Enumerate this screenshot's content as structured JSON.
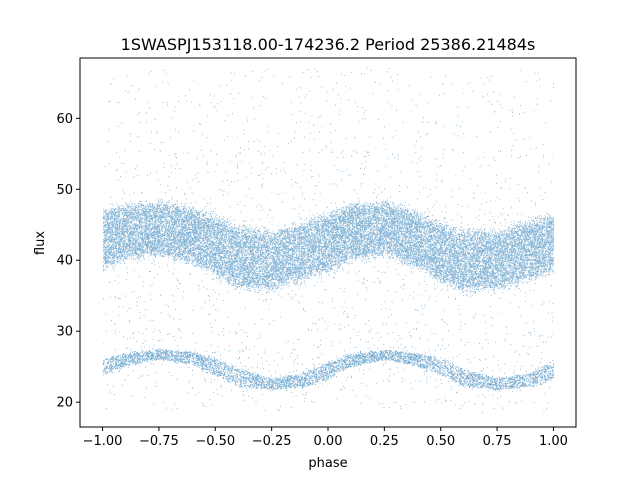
{
  "chart_data": {
    "type": "scatter",
    "title": "1SWASPJ153118.00-174236.2 Period 25386.21484s",
    "xlabel": "phase",
    "ylabel": "flux",
    "xlim": [
      -1.1,
      1.1
    ],
    "ylim": [
      16.5,
      68.5
    ],
    "xticks": [
      -1.0,
      -0.75,
      -0.5,
      -0.25,
      0.0,
      0.25,
      0.5,
      0.75,
      1.0
    ],
    "xtick_labels": [
      "−1.00",
      "−0.75",
      "−0.50",
      "−0.25",
      "0.00",
      "0.25",
      "0.50",
      "0.75",
      "1.00"
    ],
    "yticks": [
      20,
      30,
      40,
      50,
      60
    ],
    "ytick_labels": [
      "20",
      "30",
      "40",
      "50",
      "60"
    ],
    "grid": false,
    "color": "#1f77b4",
    "series": [
      {
        "band": "upper",
        "phase": [
          -1.0,
          -0.9,
          -0.75,
          -0.6,
          -0.5,
          -0.4,
          -0.25,
          -0.1,
          0.0,
          0.1,
          0.25,
          0.4,
          0.5,
          0.6,
          0.75,
          0.9,
          1.0
        ],
        "center_flux": [
          43.0,
          44.0,
          44.5,
          43.5,
          42.0,
          40.5,
          40.0,
          41.5,
          42.5,
          44.0,
          44.5,
          43.0,
          41.0,
          40.0,
          40.0,
          41.5,
          42.5
        ],
        "half_width": [
          4.0,
          3.8,
          3.6,
          3.8,
          4.0,
          4.2,
          4.0,
          4.0,
          4.0,
          3.8,
          3.6,
          3.8,
          4.0,
          4.2,
          4.0,
          4.0,
          4.0
        ]
      },
      {
        "band": "lower",
        "phase": [
          -1.0,
          -0.9,
          -0.75,
          -0.6,
          -0.5,
          -0.4,
          -0.25,
          -0.1,
          0.0,
          0.1,
          0.25,
          0.4,
          0.5,
          0.6,
          0.75,
          0.9,
          1.0
        ],
        "center_flux": [
          25.0,
          26.0,
          26.8,
          26.2,
          25.0,
          23.5,
          22.6,
          23.2,
          24.5,
          26.0,
          26.7,
          26.0,
          25.0,
          23.5,
          22.6,
          23.2,
          24.6
        ],
        "half_width": [
          1.2,
          0.9,
          0.7,
          0.9,
          1.2,
          1.2,
          0.8,
          1.0,
          1.2,
          0.9,
          0.7,
          0.9,
          1.2,
          1.2,
          0.8,
          1.0,
          1.2
        ]
      }
    ]
  }
}
